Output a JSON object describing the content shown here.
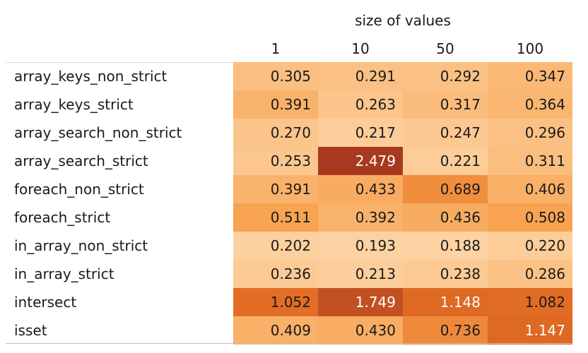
{
  "chart_data": {
    "type": "heatmap",
    "column_header_title": "size of values",
    "columns": [
      "1",
      "10",
      "50",
      "100"
    ],
    "rows": [
      "array_keys_non_strict",
      "array_keys_strict",
      "array_search_non_strict",
      "array_search_strict",
      "foreach_non_strict",
      "foreach_strict",
      "in_array_non_strict",
      "in_array_strict",
      "intersect",
      "isset"
    ],
    "values": [
      [
        "0.305",
        "0.291",
        "0.292",
        "0.347"
      ],
      [
        "0.391",
        "0.263",
        "0.317",
        "0.364"
      ],
      [
        "0.270",
        "0.217",
        "0.247",
        "0.296"
      ],
      [
        "0.253",
        "2.479",
        "0.221",
        "0.311"
      ],
      [
        "0.391",
        "0.433",
        "0.689",
        "0.406"
      ],
      [
        "0.511",
        "0.392",
        "0.436",
        "0.508"
      ],
      [
        "0.202",
        "0.193",
        "0.188",
        "0.220"
      ],
      [
        "0.236",
        "0.213",
        "0.238",
        "0.286"
      ],
      [
        "1.052",
        "1.749",
        "1.148",
        "1.082"
      ],
      [
        "0.409",
        "0.430",
        "0.736",
        "1.147"
      ]
    ],
    "color_scale": {
      "low": "#fdd3a4",
      "mid": "#f7a24f",
      "high": "#e56f24",
      "max": "#a6391f"
    },
    "text_colors": {
      "dark": "#1a1a1a",
      "light": "#ffffff"
    }
  }
}
